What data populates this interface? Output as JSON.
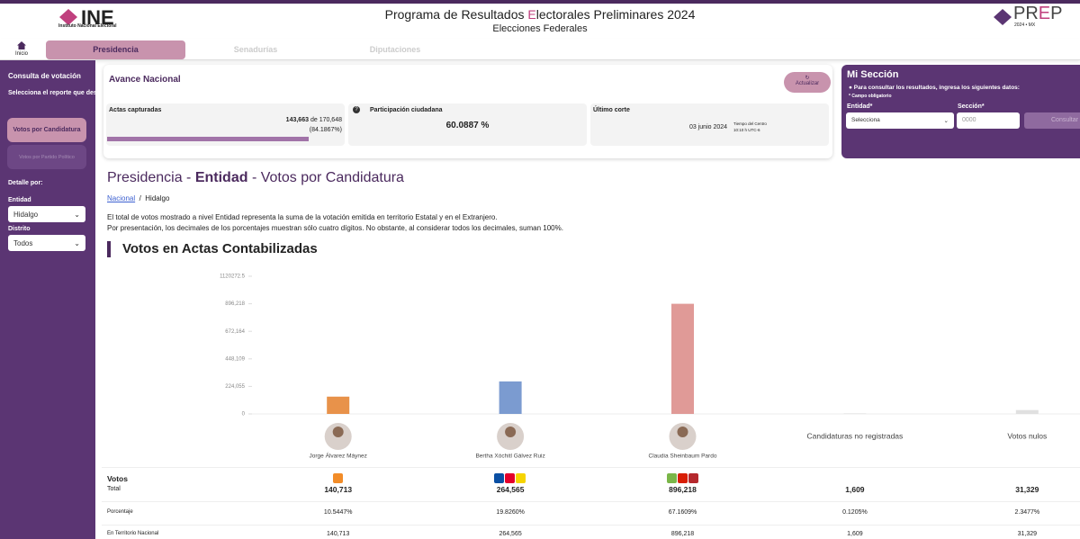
{
  "header": {
    "logo": "INE",
    "logo_sub": "Instituto Nacional Electoral",
    "title_parts": [
      "Programa de Resultados ",
      "E",
      "lectorales Preliminares 2024"
    ],
    "subtitle": "Elecciones Federales",
    "prep_parts": [
      "PR",
      "E",
      "P"
    ],
    "prep_sub": "2024 • MX"
  },
  "nav": {
    "home": "Inicio",
    "tabs": [
      "Presidencia",
      "Senadurías",
      "Diputaciones"
    ]
  },
  "sidebar": {
    "title": "Consulta de votación",
    "prompt": "Selecciona el reporte que deseas consultar:",
    "buttons": [
      "Votos por Candidatura",
      "Votos por Partido Político"
    ],
    "detail": "Detalle por:",
    "entidad_label": "Entidad",
    "entidad_value": "Hidalgo",
    "distrito_label": "Distrito",
    "distrito_value": "Todos"
  },
  "avance": {
    "title": "Avance Nacional",
    "refresh": "Actualizar",
    "actas_label": "Actas capturadas",
    "actas_captured": "143,663",
    "actas_of": "de",
    "actas_total": "170,648",
    "actas_percent": "(84.1867%)",
    "participacion_label": "Participación ciudadana",
    "participacion_value": "60.0887 %",
    "corte_label": "Último corte",
    "corte_date": "03 junio 2024",
    "corte_zone": "Tiempo del Centro",
    "corte_time": "10:10 h UTC-6"
  },
  "mi_seccion": {
    "title": "Mi Sección",
    "prompt": "Para consultar los resultados, ingresa los siguientes datos:",
    "required": "* Campo obligatorio",
    "entidad_label": "Entidad*",
    "entidad_value": "Selecciona",
    "seccion_label": "Sección*",
    "seccion_placeholder": "0000",
    "button": "Consultar"
  },
  "page": {
    "heading_parts": [
      "Presidencia - ",
      "Entidad",
      " - Votos por Candidatura"
    ],
    "breadcrumb": [
      "Nacional",
      "Hidalgo"
    ],
    "separator": "/",
    "notes": [
      "El total de votos mostrado a nivel Entidad representa la suma de la votación emitida en territorio Estatal y en el Extranjero.",
      "Por presentación, los decimales de los porcentajes muestran sólo cuatro dígitos. No obstante, al considerar todos los decimales, suman 100%."
    ]
  },
  "chart_data": {
    "type": "bar",
    "title": "Votos en Actas Contabilizadas",
    "categories": [
      "Jorge Álvarez Máynez",
      "Bertha Xóchitl Gálvez Ruiz",
      "Claudia Sheinbaum Pardo",
      "Candidaturas no registradas",
      "Votos nulos"
    ],
    "values": [
      140713,
      264565,
      896218,
      1609,
      31329
    ],
    "value_labels": [
      "140,713",
      "264,565",
      "896,218",
      "1,609",
      "31,329"
    ],
    "colors": [
      "#e8924a",
      "#7b9bd0",
      "#e09a97",
      "#bdbdbd",
      "#e0e0e0"
    ],
    "ylim": [
      0,
      1120272.5
    ],
    "yticks": [
      0,
      {
        "value": 224055,
        "label": "224,055"
      },
      {
        "value": 448109,
        "label": "448,109"
      },
      {
        "value": 672164,
        "label": "672,164"
      },
      {
        "value": 896218,
        "label": "896,218"
      },
      1120272.5
    ],
    "grid": false
  },
  "table": {
    "row_labels": [
      "Votos",
      "Total",
      "Porcentaje",
      "En Territorio Nacional"
    ],
    "percent": [
      "10.5447%",
      "19.8260%",
      "67.1609%",
      "0.1205%",
      "2.3477%"
    ],
    "territorio": [
      "140,713",
      "264,565",
      "896,218",
      "1,609",
      "31,329"
    ]
  }
}
